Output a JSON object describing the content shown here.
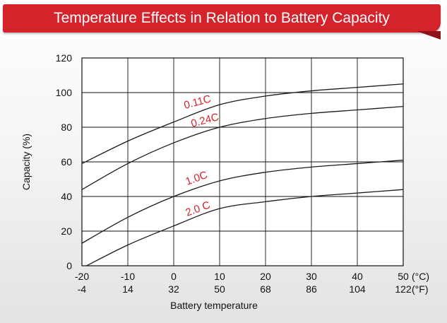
{
  "header": {
    "title": "Temperature Effects in Relation to Battery Capacity"
  },
  "chart_data": {
    "type": "line",
    "xlabel": "Battery temperature",
    "ylabel": "Capacity (%)",
    "xlim": [
      -20,
      50
    ],
    "ylim": [
      0,
      120
    ],
    "grid": true,
    "x_ticks_c": [
      "-20",
      "-10",
      "0",
      "10",
      "20",
      "30",
      "40",
      "50"
    ],
    "x_ticks_f": [
      "-4",
      "14",
      "32",
      "50",
      "68",
      "86",
      "104",
      "122"
    ],
    "x_unit_c": "(°C)",
    "x_unit_f": "(°F)",
    "y_ticks": [
      "0",
      "20",
      "40",
      "60",
      "80",
      "100",
      "120"
    ],
    "line_color": "#1a1a1a",
    "label_color": "#d4232b",
    "series": [
      {
        "name": "0.11C",
        "x": [
          -20,
          -10,
          0,
          10,
          20,
          30,
          40,
          50
        ],
        "y": [
          59,
          72,
          83,
          93,
          98,
          101,
          103,
          105
        ]
      },
      {
        "name": "0.24C",
        "x": [
          -20,
          -10,
          0,
          10,
          20,
          30,
          40,
          50
        ],
        "y": [
          44,
          59,
          71,
          80,
          85,
          88,
          90,
          92
        ]
      },
      {
        "name": "1.0C",
        "x": [
          -20,
          -10,
          0,
          10,
          20,
          30,
          40,
          50
        ],
        "y": [
          13,
          28,
          40,
          49,
          54,
          57,
          59,
          61
        ]
      },
      {
        "name": "2.0 C",
        "x": [
          -19,
          -10,
          0,
          10,
          20,
          30,
          40,
          50
        ],
        "y": [
          0,
          12,
          23,
          33,
          37,
          40,
          42,
          44
        ]
      }
    ]
  }
}
